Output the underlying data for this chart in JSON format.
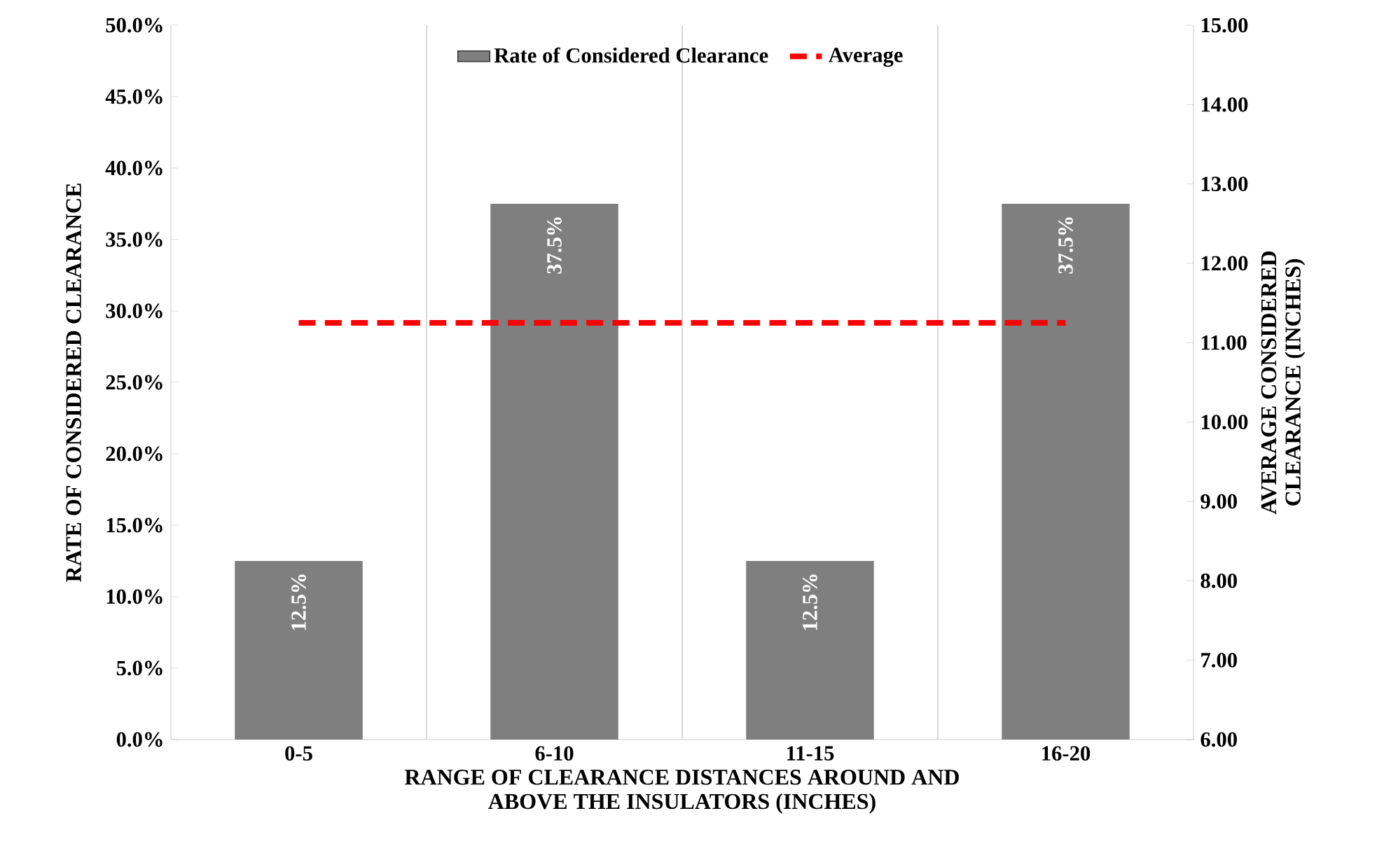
{
  "chart_data": {
    "type": "bar",
    "categories": [
      "0-5",
      "6-10",
      "11-15",
      "16-20"
    ],
    "series": [
      {
        "name": "Rate of Considered Clearance",
        "color": "#7f7f7f",
        "values": [
          12.5,
          37.5,
          12.5,
          37.5
        ],
        "value_labels": [
          "12.5%",
          "37.5%",
          "12.5%",
          "37.5%"
        ]
      },
      {
        "name": "Average",
        "type": "line",
        "axis": "y2",
        "color": "#ff0000",
        "line_style": "dashed",
        "values": [
          11.25,
          11.25,
          11.25,
          11.25
        ]
      }
    ],
    "xlabel": "RANGE OF CLEARANCE DISTANCES AROUND AND ABOVE THE INSULATORS (INCHES)",
    "ylabel": "RATE OF CONSIDERED CLEARANCE",
    "y2label": "AVERAGE CONSIDERED CLEARANCE (INCHES)",
    "ylim": [
      0,
      50
    ],
    "yticks": [
      {
        "value": 0,
        "label": "0.0%"
      },
      {
        "value": 5,
        "label": "5.0%"
      },
      {
        "value": 10,
        "label": "10.0%"
      },
      {
        "value": 15,
        "label": "15.0%"
      },
      {
        "value": 20,
        "label": "20.0%"
      },
      {
        "value": 25,
        "label": "25.0%"
      },
      {
        "value": 30,
        "label": "30.0%"
      },
      {
        "value": 35,
        "label": "35.0%"
      },
      {
        "value": 40,
        "label": "40.0%"
      },
      {
        "value": 45,
        "label": "45.0%"
      },
      {
        "value": 50,
        "label": "50.0%"
      }
    ],
    "y2lim": [
      6,
      15
    ],
    "y2ticks": [
      {
        "value": 6,
        "label": "6.00"
      },
      {
        "value": 7,
        "label": "7.00"
      },
      {
        "value": 8,
        "label": "8.00"
      },
      {
        "value": 9,
        "label": "9.00"
      },
      {
        "value": 10,
        "label": "10.00"
      },
      {
        "value": 11,
        "label": "11.00"
      },
      {
        "value": 12,
        "label": "12.00"
      },
      {
        "value": 13,
        "label": "13.00"
      },
      {
        "value": 14,
        "label": "14.00"
      },
      {
        "value": 15,
        "label": "15.00"
      }
    ],
    "grid": "x",
    "legend": "top",
    "marker": "none"
  }
}
